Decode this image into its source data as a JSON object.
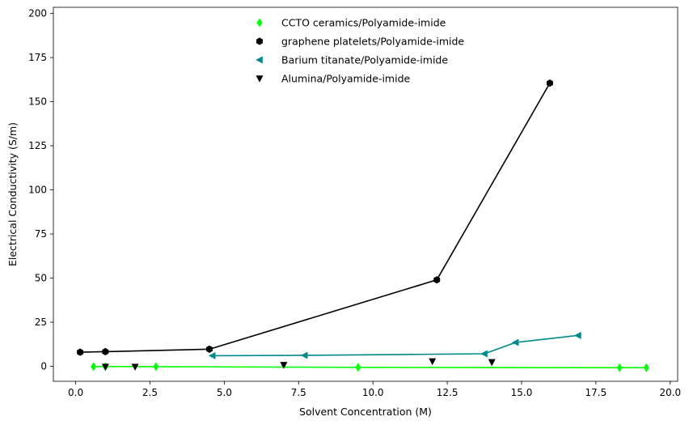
{
  "chart_data": {
    "type": "line",
    "xlabel": "Solvent Concentration (M)",
    "ylabel": "Electrical Conductivity (S/m)",
    "xlim": [
      -0.75,
      20.25
    ],
    "ylim": [
      -8.5,
      203.5
    ],
    "x_ticks": [
      0.0,
      2.5,
      5.0,
      7.5,
      10.0,
      12.5,
      15.0,
      17.5,
      20.0
    ],
    "x_tick_labels": [
      "0.0",
      "2.5",
      "5.0",
      "7.5",
      "10.0",
      "12.5",
      "15.0",
      "17.5",
      "20.0"
    ],
    "y_ticks": [
      0,
      25,
      50,
      75,
      100,
      125,
      150,
      175,
      200
    ],
    "y_tick_labels": [
      "0",
      "25",
      "50",
      "75",
      "100",
      "125",
      "150",
      "175",
      "200"
    ],
    "grid": false,
    "legend_position": "top-center",
    "series": [
      {
        "name": "CCTO ceramics/Polyamide-imide",
        "color": "#00ff00",
        "marker": "diamond",
        "line": true,
        "x": [
          0.6,
          1.0,
          2.7,
          9.5,
          18.3,
          19.2
        ],
        "y": [
          -0.2,
          -0.1,
          -0.2,
          -0.6,
          -0.8,
          -0.8
        ]
      },
      {
        "name": "graphene platelets/Polyamide-imide",
        "color": "#000000",
        "marker": "hexagon",
        "line": true,
        "x": [
          0.15,
          1.0,
          4.5,
          12.15,
          15.95
        ],
        "y": [
          8.0,
          8.3,
          9.7,
          49.0,
          160.5
        ]
      },
      {
        "name": "Barium titanate/Polyamide-imide",
        "color": "#008b8b",
        "marker": "triangle-left",
        "line": true,
        "x": [
          16.9,
          14.8,
          13.75,
          7.7,
          4.6
        ],
        "y": [
          17.5,
          13.5,
          7.1,
          6.2,
          6.0
        ]
      },
      {
        "name": "Alumina/Polyamide-imide",
        "color": "#000000",
        "marker": "triangle-down",
        "line": false,
        "x": [
          1.0,
          2.0,
          7.0,
          12.0,
          14.0
        ],
        "y": [
          -0.3,
          -0.3,
          0.7,
          2.8,
          2.3
        ]
      }
    ]
  }
}
